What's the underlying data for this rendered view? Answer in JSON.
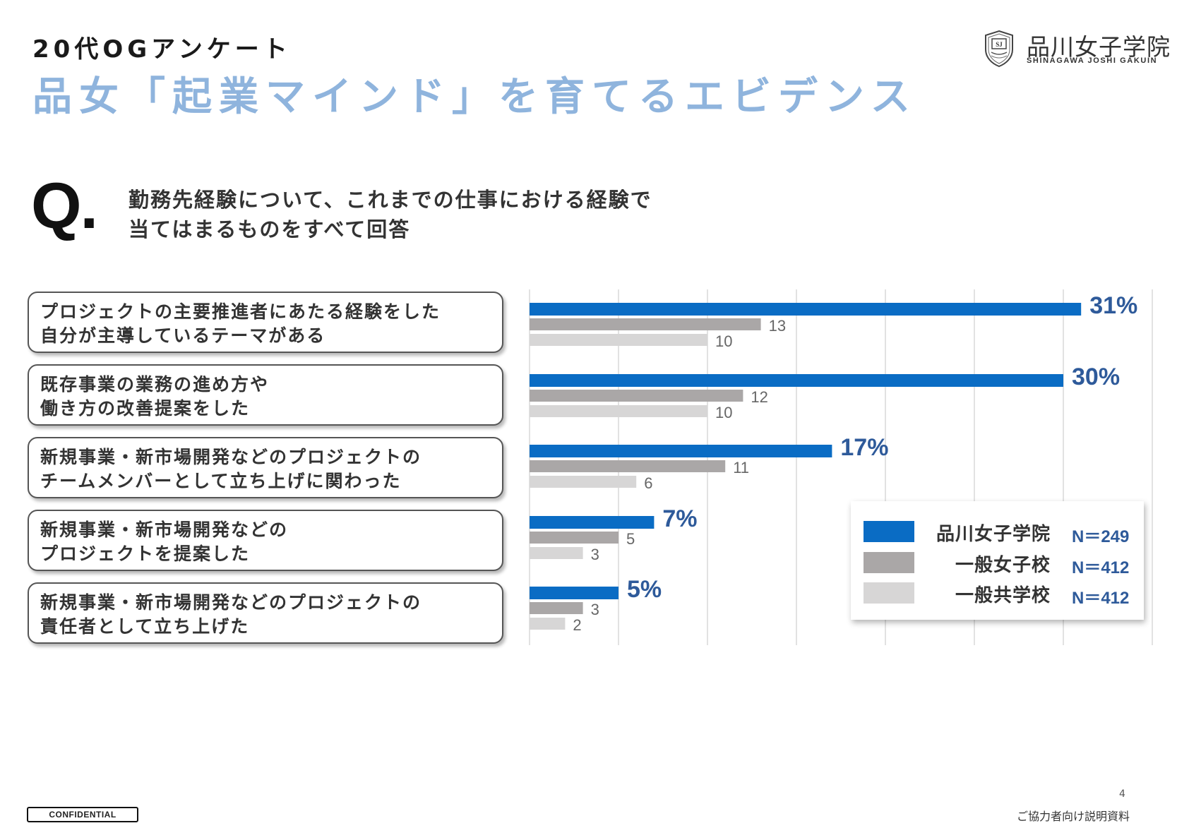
{
  "header": {
    "kicker": "20代OGアンケート",
    "title": "品女「起業マインド」を育てるエビデンス"
  },
  "logo": {
    "name": "品川女子学院",
    "sub": "SHINAGAWA JOSHI GAKUIN"
  },
  "question": {
    "mark": "Q.",
    "lines": [
      "勤務先経験について、これまでの仕事における経験で",
      "当てはまるものをすべて回答"
    ]
  },
  "categories": [
    {
      "lines": [
        "プロジェクトの主要推進者にあたる経験をした",
        "自分が主導しているテーマがある"
      ]
    },
    {
      "lines": [
        "既存事業の業務の進め方や",
        "働き方の改善提案をした"
      ]
    },
    {
      "lines": [
        "新規事業・新市場開発などのプロジェクトの",
        "チームメンバーとして立ち上げに関わった"
      ]
    },
    {
      "lines": [
        "新規事業・新市場開発などの",
        "プロジェクトを提案した"
      ]
    },
    {
      "lines": [
        "新規事業・新市場開発などのプロジェクトの",
        "責任者として立ち上げた"
      ]
    }
  ],
  "chart_data": {
    "type": "bar",
    "orientation": "horizontal",
    "categories": [
      "プロジェクトの主要推進者にあたる経験をした 自分が主導しているテーマがある",
      "既存事業の業務の進め方や 働き方の改善提案をした",
      "新規事業・新市場開発などのプロジェクトの チームメンバーとして立ち上げに関わった",
      "新規事業・新市場開発などの プロジェクトを提案した",
      "新規事業・新市場開発などのプロジェクトの 責任者として立ち上げた"
    ],
    "series": [
      {
        "name": "品川女子学院",
        "values": [
          31,
          30,
          17,
          7,
          5
        ],
        "labels": [
          "31%",
          "30%",
          "17%",
          "7%",
          "5%"
        ],
        "color": "#0a6cc4"
      },
      {
        "name": "一般女子校",
        "values": [
          13,
          12,
          11,
          5,
          3
        ],
        "labels": [
          "13",
          "12",
          "11",
          "5",
          "3"
        ],
        "color": "#aaa7a7"
      },
      {
        "name": "一般共学校",
        "values": [
          10,
          10,
          6,
          3,
          2
        ],
        "labels": [
          "10",
          "10",
          "6",
          "3",
          "2"
        ],
        "color": "#d7d6d6"
      }
    ],
    "xlim": [
      0,
      35
    ],
    "grid_step": 5,
    "grid": true,
    "legend_position": "bottom-right"
  },
  "legend": [
    {
      "name": "品川女子学院",
      "n": "N＝249",
      "color": "#0a6cc4"
    },
    {
      "name": "一般女子校",
      "n": "N＝412",
      "color": "#aaa7a7"
    },
    {
      "name": "一般共学校",
      "n": "N＝412",
      "color": "#d7d6d6"
    }
  ],
  "footer": {
    "page": "4",
    "note": "ご協力者向け説明資料",
    "confidential": "CONFIDENTIAL"
  }
}
